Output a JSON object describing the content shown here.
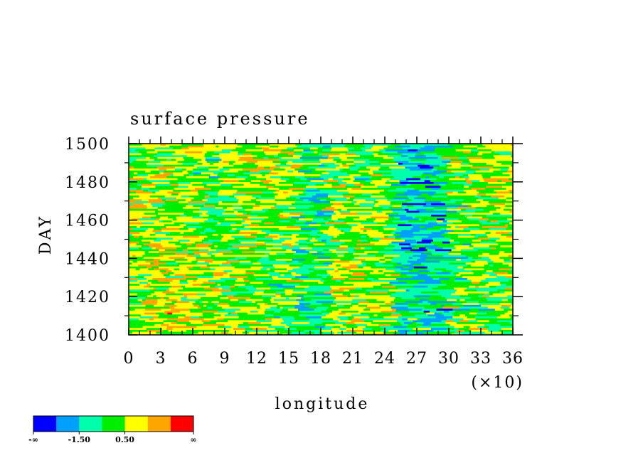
{
  "chart_data": {
    "type": "heatmap",
    "title": "surface pressure",
    "xlabel": "longitude",
    "ylabel": "DAY",
    "x_scale_note": "(×10)",
    "xlim": [
      0,
      36
    ],
    "ylim": [
      1400,
      1500
    ],
    "x_ticks": [
      "0",
      "3",
      "6",
      "9",
      "12",
      "15",
      "18",
      "21",
      "24",
      "27",
      "30",
      "33",
      "36"
    ],
    "y_ticks": [
      "1400",
      "1420",
      "1440",
      "1460",
      "1480",
      "1500"
    ],
    "colorbar": {
      "colors": [
        "#0000ff",
        "#00a0ff",
        "#00ffaa",
        "#00ee00",
        "#ffff00",
        "#ffa500",
        "#ff0000"
      ],
      "labels": [
        "-∞",
        "-1.50",
        "0.50",
        "∞"
      ]
    }
  }
}
